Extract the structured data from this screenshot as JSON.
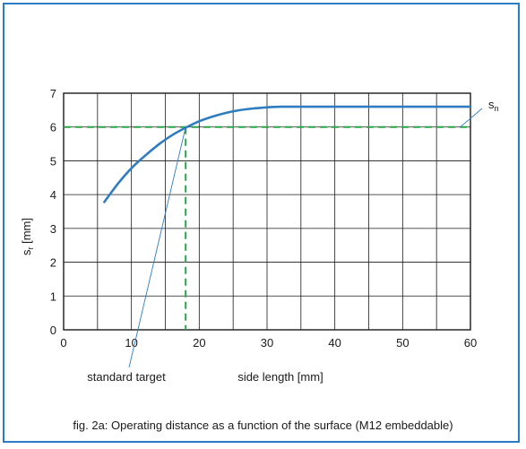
{
  "chart_data": {
    "type": "line",
    "title": "",
    "xlabel": "side length [mm]",
    "ylabel": "sr [mm]",
    "ylabel_main": "s",
    "ylabel_sub": "r",
    "ylabel_unit": " [mm]",
    "xlim": [
      0,
      60
    ],
    "ylim": [
      0,
      7
    ],
    "x_ticks": [
      0,
      10,
      20,
      30,
      40,
      50,
      60
    ],
    "y_ticks": [
      0,
      1,
      2,
      3,
      4,
      5,
      6,
      7
    ],
    "x_grid_step": 5,
    "grid": true,
    "series": [
      {
        "name": "sn",
        "color": "#2f7cc1",
        "x": [
          6,
          8,
          10,
          12,
          14,
          16,
          18,
          20,
          22,
          24,
          26,
          28,
          30,
          32,
          34,
          36,
          40,
          45,
          50,
          55,
          60
        ],
        "y": [
          3.78,
          4.32,
          4.78,
          5.15,
          5.48,
          5.76,
          5.98,
          6.17,
          6.31,
          6.42,
          6.5,
          6.55,
          6.58,
          6.6,
          6.6,
          6.6,
          6.6,
          6.6,
          6.6,
          6.6,
          6.6
        ]
      }
    ],
    "reference": {
      "color": "#2aa54a",
      "y_value": 6,
      "x_value": 18
    },
    "annotations": [
      {
        "text_main": "s",
        "text_sub": "n",
        "text": "sn",
        "point_x": 58.5,
        "point_y": 6.0
      },
      {
        "text": "standard target",
        "point_x": 18,
        "point_y": 6.0
      }
    ]
  },
  "caption": "fig. 2a: Operating distance as a function of the surface (M12 embeddable)",
  "colors": {
    "frame": "#2b7cc4",
    "curve": "#2f7cc1",
    "reference": "#2aa54a",
    "grid": "#1a1a1a"
  }
}
